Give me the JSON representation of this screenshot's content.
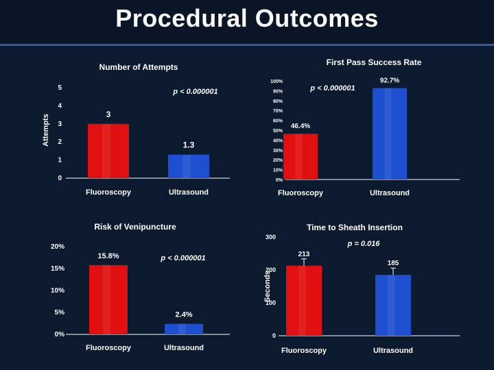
{
  "slide": {
    "title": "Procedural Outcomes"
  },
  "colors": {
    "background": "#0b1a2e",
    "fluoroscopy": "#e01010",
    "ultrasound": "#1e4fd0",
    "text": "#ffffff"
  },
  "chart_data": [
    {
      "type": "bar",
      "title": "Number of Attempts",
      "ylabel": "Attempts",
      "xlabel": "",
      "categories": [
        "Fluoroscopy",
        "Ultrasound"
      ],
      "values": [
        3,
        1.3
      ],
      "value_labels": [
        "3",
        "1.3"
      ],
      "yticks": [
        "0",
        "1",
        "2",
        "3",
        "4",
        "5"
      ],
      "ylim": [
        0,
        5
      ],
      "annotation": "p < 0.000001",
      "grid": false
    },
    {
      "type": "bar",
      "title": "First Pass Success Rate",
      "ylabel": "",
      "xlabel": "",
      "categories": [
        "Fluoroscopy",
        "Ultrasound"
      ],
      "values": [
        46.4,
        92.7
      ],
      "value_labels": [
        "46.4%",
        "92.7%"
      ],
      "yticks": [
        "0%",
        "10%",
        "20%",
        "30%",
        "40%",
        "50%",
        "60%",
        "70%",
        "80%",
        "90%",
        "100%"
      ],
      "ylim": [
        0,
        100
      ],
      "annotation": "p < 0.000001",
      "grid": false
    },
    {
      "type": "bar",
      "title": "Risk of Venipuncture",
      "ylabel": "",
      "xlabel": "",
      "categories": [
        "Fluoroscopy",
        "Ultrasound"
      ],
      "values": [
        15.8,
        2.4
      ],
      "value_labels": [
        "15.8%",
        "2.4%"
      ],
      "yticks": [
        "0%",
        "5%",
        "10%",
        "15%",
        "20%"
      ],
      "ylim": [
        0,
        20
      ],
      "annotation": "p < 0.000001",
      "grid": false
    },
    {
      "type": "bar",
      "title": "Time to Sheath Insertion",
      "ylabel": "Seconds",
      "xlabel": "",
      "categories": [
        "Fluoroscopy",
        "Ultrasound"
      ],
      "values": [
        213,
        185
      ],
      "value_labels": [
        "213",
        "185"
      ],
      "yticks": [
        "0",
        "100",
        "200",
        "300"
      ],
      "ylim": [
        0,
        300
      ],
      "annotation": "p = 0.016",
      "grid": false
    }
  ]
}
